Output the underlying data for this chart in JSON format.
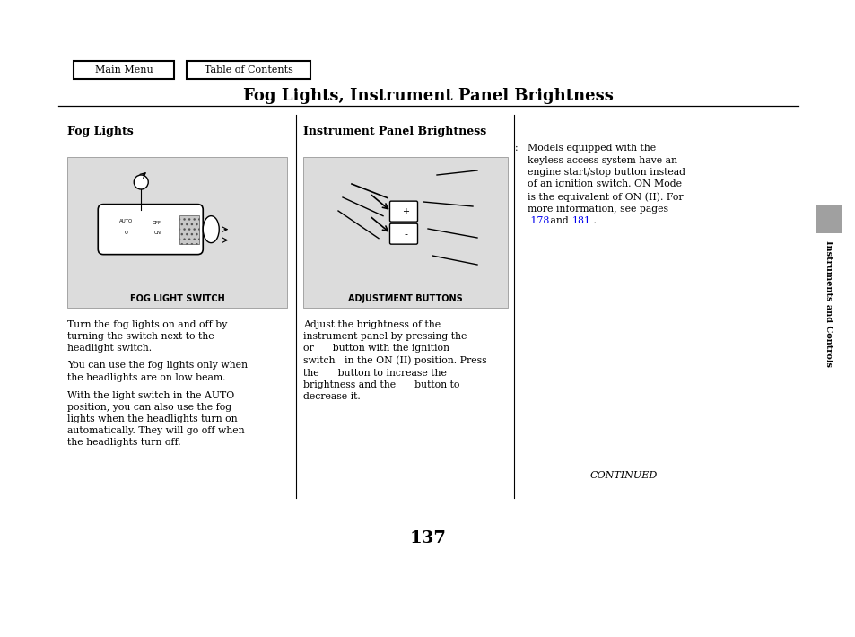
{
  "title": "Fog Lights, Instrument Panel Brightness",
  "nav_buttons": [
    "Main Menu",
    "Table of Contents"
  ],
  "section1_heading": "Fog Lights",
  "section2_heading": "Instrument Panel Brightness",
  "section1_caption": "FOG LIGHT SWITCH",
  "section2_caption": "ADJUSTMENT BUTTONS",
  "section1_text": [
    "Turn the fog lights on and off by\nturning the switch next to the\nheadlight switch.",
    "You can use the fog lights only when\nthe headlights are on low beam.",
    "With the light switch in the AUTO\nposition, you can also use the fog\nlights when the headlights turn on\nautomatically. They will go off when\nthe headlights turn off."
  ],
  "section2_text": "Adjust the brightness of the\ninstrument panel by pressing the\nor      button with the ignition\nswitch   in the ON (II) position. Press\nthe      button to increase the\nbrightness and the      button to\ndecrease it.",
  "note_line1": ":  Models equipped with the",
  "note_line2": "keyless access system have an",
  "note_line3": "engine start/stop button instead",
  "note_line4": "of an ignition switch. ON Mode",
  "note_line5": "is the equivalent of ON (II). For",
  "note_line6": "more information, see pages",
  "note_line7_pre": " 178",
  "note_line7_mid": " and ",
  "note_line7_link1": "181",
  "note_line7_post": " .",
  "sidebar_text": "Instruments and Controls",
  "page_number": "137",
  "continued_text": "CONTINUED",
  "bg_color": "#ffffff",
  "image_bg_color": "#dcdcdc",
  "sidebar_bg_color": "#a0a0a0",
  "link_color": "#0000ee"
}
